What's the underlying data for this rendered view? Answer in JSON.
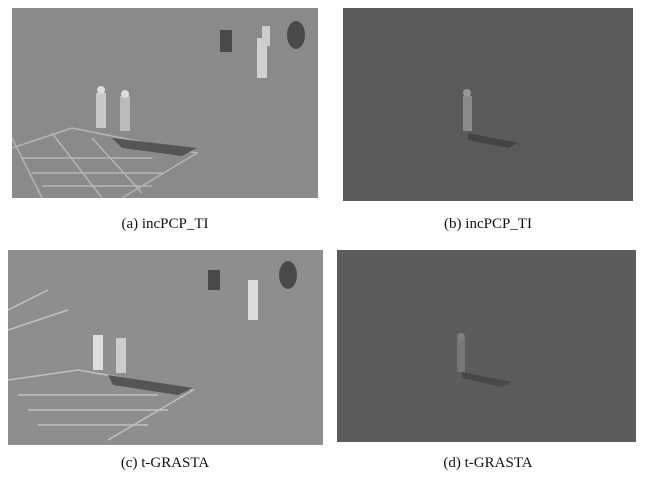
{
  "panels": [
    {
      "caption": "(a) incPCP_TI"
    },
    {
      "caption": "(b) incPCP_TI"
    },
    {
      "caption": "(c) t-GRASTA"
    },
    {
      "caption": "(d) t-GRASTA"
    }
  ]
}
